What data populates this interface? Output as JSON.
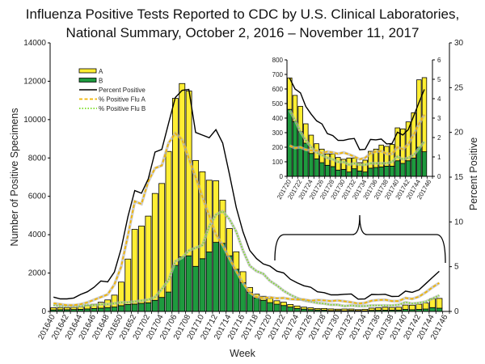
{
  "title_line1": "Influenza Positive Tests Reported to CDC by U.S. Clinical Laboratories,",
  "title_line2": "National Summary, October 2, 2016 – November 11, 2017",
  "colors": {
    "A": "#ffee33",
    "B": "#1e9a3e",
    "percent": "#000000",
    "fluA": "#f2b500",
    "fluB": "#77dd22",
    "shadow": "#b8b8b8"
  },
  "chart_data": [
    {
      "type": "bar",
      "stacked": true,
      "xlabel": "Week",
      "ylabel": "Number of Positive Specimens",
      "y2label": "Percent Positive",
      "ylim": [
        0,
        14000
      ],
      "y2lim": [
        0,
        30
      ],
      "yticks": [
        "0",
        "2000",
        "4000",
        "6000",
        "8000",
        "10000",
        "12000",
        "14000"
      ],
      "y2ticks": [
        "0",
        "5",
        "10",
        "15",
        "20",
        "25",
        "30"
      ],
      "x_tick_labels": [
        "201640",
        "201642",
        "201644",
        "201646",
        "201648",
        "201650",
        "201652",
        "201702",
        "201704",
        "201706",
        "201708",
        "201710",
        "201712",
        "201714",
        "201716",
        "201718",
        "201720",
        "201722",
        "201724",
        "201726",
        "201728",
        "201730",
        "201732",
        "201734",
        "201736",
        "201738",
        "201740",
        "201742",
        "201744",
        "201746"
      ],
      "grid": false,
      "legend_placement": "top-left",
      "weeks": [
        "201640",
        "201641",
        "201642",
        "201643",
        "201644",
        "201645",
        "201646",
        "201647",
        "201648",
        "201649",
        "201650",
        "201651",
        "201652",
        "201701",
        "201702",
        "201703",
        "201704",
        "201705",
        "201706",
        "201707",
        "201708",
        "201709",
        "201710",
        "201711",
        "201712",
        "201713",
        "201714",
        "201715",
        "201716",
        "201717",
        "201718",
        "201719",
        "201720",
        "201721",
        "201722",
        "201723",
        "201724",
        "201725",
        "201726",
        "201727",
        "201728",
        "201729",
        "201730",
        "201731",
        "201732",
        "201733",
        "201734",
        "201735",
        "201736",
        "201737",
        "201738",
        "201739",
        "201740",
        "201741",
        "201742",
        "201743",
        "201744",
        "201745"
      ],
      "series": [
        {
          "name": "A",
          "kind": "bar",
          "axis": "left",
          "values": [
            110,
            110,
            110,
            110,
            130,
            180,
            230,
            310,
            400,
            620,
            1230,
            2370,
            3900,
            4030,
            4520,
            5570,
            5940,
            7330,
            8710,
            9030,
            8590,
            5520,
            4530,
            3740,
            3210,
            2250,
            1420,
            910,
            570,
            250,
            200,
            210,
            216,
            180,
            174,
            133,
            126,
            104,
            93,
            78,
            87,
            87,
            69,
            96,
            74,
            57,
            81,
            116,
            126,
            150,
            136,
            149,
            226,
            237,
            267,
            311,
            463,
            509
          ]
        },
        {
          "name": "B",
          "kind": "bar",
          "axis": "left",
          "values": [
            80,
            90,
            90,
            100,
            110,
            130,
            150,
            170,
            200,
            230,
            300,
            360,
            380,
            420,
            450,
            580,
            730,
            1010,
            2400,
            2850,
            2900,
            2350,
            2750,
            3100,
            3600,
            3550,
            2900,
            2200,
            1500,
            1000,
            700,
            580,
            460,
            376,
            307,
            228,
            157,
            120,
            94,
            76,
            67,
            43,
            48,
            30,
            52,
            37,
            30,
            56,
            61,
            65,
            70,
            70,
            107,
            89,
            107,
            126,
            200,
            169
          ]
        },
        {
          "name": "Percent Positive",
          "kind": "line",
          "axis": "right",
          "values": [
            1.6,
            1.4,
            1.4,
            1.5,
            1.9,
            2.2,
            2.7,
            3.4,
            3.3,
            4.4,
            7.0,
            10.6,
            13.5,
            13.2,
            14.8,
            17.8,
            18.1,
            21.0,
            23.9,
            24.7,
            24.8,
            20.0,
            19.7,
            19.4,
            20.3,
            18.8,
            15.3,
            11.6,
            8.9,
            6.8,
            5.9,
            5.3,
            5.06,
            4.5,
            4.3,
            3.6,
            3.2,
            2.86,
            2.7,
            2.2,
            2.1,
            1.85,
            1.85,
            1.92,
            1.95,
            1.37,
            1.39,
            1.9,
            1.88,
            1.92,
            1.67,
            1.69,
            2.27,
            2.13,
            2.4,
            3.1,
            3.8,
            4.48
          ]
        },
        {
          "name": "% Positive Flu A",
          "kind": "line",
          "axis": "right",
          "values": [
            0.9,
            0.8,
            0.7,
            0.7,
            0.8,
            1.0,
            1.3,
            1.6,
            1.9,
            3.0,
            5.0,
            8.5,
            12.3,
            12.0,
            14.5,
            16.0,
            16.3,
            18.8,
            19.9,
            19.2,
            17.1,
            15.0,
            12.8,
            10.7,
            8.6,
            7.4,
            5.9,
            4.5,
            3.2,
            2.1,
            1.6,
            1.5,
            1.58,
            1.46,
            1.5,
            1.37,
            1.33,
            1.33,
            1.19,
            1.27,
            1.23,
            1.16,
            1.23,
            1.13,
            1.02,
            0.88,
            0.95,
            1.19,
            1.27,
            1.3,
            1.16,
            1.16,
            1.5,
            1.4,
            1.65,
            2.13,
            2.7,
            3.18
          ]
        },
        {
          "name": "% Positive Flu B",
          "kind": "line",
          "axis": "right",
          "values": [
            0.7,
            0.6,
            0.6,
            0.6,
            0.6,
            0.7,
            0.7,
            0.8,
            0.8,
            0.9,
            1.0,
            1.0,
            1.1,
            1.2,
            1.3,
            1.6,
            2.5,
            3.5,
            5.6,
            6.0,
            6.8,
            7.1,
            7.4,
            9.5,
            10.8,
            11.2,
            10.3,
            8.9,
            6.8,
            5.1,
            4.5,
            4.2,
            3.4,
            2.9,
            2.3,
            1.85,
            1.5,
            1.23,
            1.09,
            0.95,
            0.88,
            0.74,
            0.74,
            0.6,
            0.67,
            0.6,
            0.6,
            0.67,
            0.67,
            0.67,
            0.67,
            0.74,
            1.02,
            0.88,
            0.95,
            1.09,
            1.44,
            1.79
          ]
        }
      ]
    },
    {
      "type": "bar",
      "stacked": true,
      "role": "inset",
      "week_range": [
        "201720",
        "201746"
      ],
      "ylim": [
        0,
        800
      ],
      "y2lim": [
        0,
        6
      ],
      "yticks": [
        "0",
        "100",
        "200",
        "300",
        "400",
        "500",
        "600",
        "700",
        "800"
      ],
      "y2ticks": [
        "0",
        "1",
        "2",
        "3",
        "4",
        "5",
        "6"
      ],
      "x_tick_labels": [
        "201720",
        "201722",
        "201724",
        "201726",
        "201728",
        "201730",
        "201732",
        "201734",
        "201736",
        "201738",
        "201740",
        "201742",
        "201744",
        "201746"
      ],
      "grid": false
    }
  ]
}
